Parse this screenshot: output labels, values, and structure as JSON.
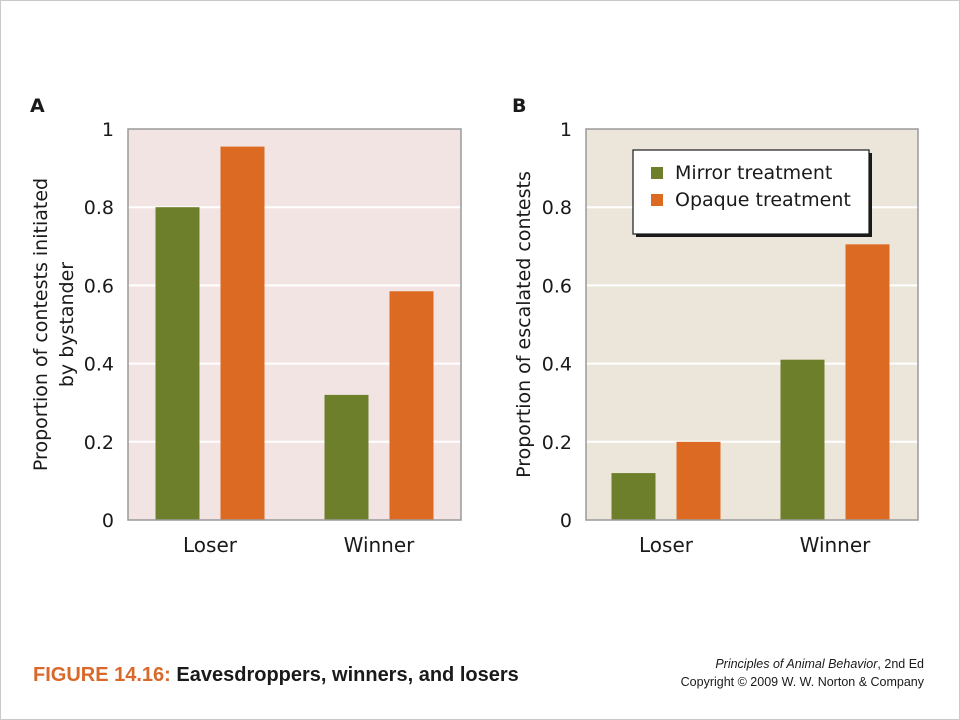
{
  "colors": {
    "mirror": "#6e7f2c",
    "opaque": "#dd6a22",
    "panel_a_bg": "#f2e4e2",
    "panel_b_bg": "#ece6da",
    "grid": "#ffffff",
    "axis": "#9a9a9a"
  },
  "chart_data": [
    {
      "type": "bar",
      "panel_label": "A",
      "categories": [
        "Loser",
        "Winner"
      ],
      "series": [
        {
          "name": "Mirror treatment",
          "values": [
            0.8,
            0.32
          ]
        },
        {
          "name": "Opaque treatment",
          "values": [
            0.955,
            0.585
          ]
        }
      ],
      "ylabel_lines": [
        "Proportion of contests initiated",
        "by bystander"
      ],
      "ylim": [
        0,
        1
      ],
      "yticks": [
        "0",
        "0.2",
        "0.4",
        "0.6",
        "0.8",
        "1"
      ],
      "grid": true,
      "legend": null
    },
    {
      "type": "bar",
      "panel_label": "B",
      "categories": [
        "Loser",
        "Winner"
      ],
      "series": [
        {
          "name": "Mirror treatment",
          "values": [
            0.12,
            0.41
          ]
        },
        {
          "name": "Opaque treatment",
          "values": [
            0.2,
            0.705
          ]
        }
      ],
      "ylabel_lines": [
        "Proportion of escalated contests"
      ],
      "ylim": [
        0,
        1
      ],
      "yticks": [
        "0",
        "0.2",
        "0.4",
        "0.6",
        "0.8",
        "1"
      ],
      "grid": true,
      "legend": "top-right"
    }
  ],
  "caption": {
    "figure_number": "FIGURE 14.16:",
    "title": "Eavesdroppers, winners, and losers"
  },
  "credits": {
    "book_title": "Principles of Animal Behavior",
    "edition": ", 2nd Ed",
    "copyright": "Copyright © 2009 W. W. Norton & Company"
  }
}
